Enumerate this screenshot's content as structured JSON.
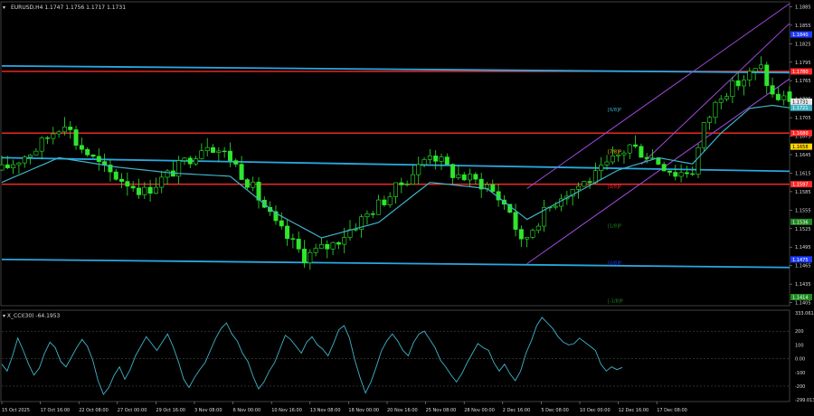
{
  "header": {
    "symbol_line": "EURUSD,H4  1.1747 1.1756 1.1717 1.1731",
    "menu_arrow": "▾"
  },
  "indicator": {
    "label": "▾ X_CCI(30) -64.1953",
    "y_ticks": [
      "333.061",
      "200",
      "100",
      "0.00",
      "-100",
      "-200",
      "-299.013"
    ]
  },
  "price_axis": {
    "ticks": [
      "1.1885",
      "1.1855",
      "1.1825",
      "1.1795",
      "1.1765",
      "1.1735",
      "1.1705",
      "1.1675",
      "1.1645",
      "1.1615",
      "1.1585",
      "1.1555",
      "1.1525",
      "1.1495",
      "1.1465",
      "1.1435",
      "1.1405"
    ],
    "current_price": "1.1731",
    "tags": [
      {
        "text": "1.1840",
        "color": "#1e3cff",
        "price": 1.184
      },
      {
        "text": "1.1780",
        "color": "#ff2a2a",
        "price": 1.178
      },
      {
        "text": "1.1721",
        "color": "#3fb3c8",
        "price": 1.1721
      },
      {
        "text": "1.1680",
        "color": "#ff2a2a",
        "price": 1.168
      },
      {
        "text": "1.1658",
        "color": "#ffd400",
        "price": 1.1658
      },
      {
        "text": "1.1597",
        "color": "#ff2a2a",
        "price": 1.1597
      },
      {
        "text": "1.1536",
        "color": "#1f8a1f",
        "price": 1.1536
      },
      {
        "text": "1.1475",
        "color": "#1e3cff",
        "price": 1.1475
      },
      {
        "text": "1.1414",
        "color": "#1f8a1f",
        "price": 1.1414
      }
    ]
  },
  "murray_labels": [
    {
      "text": "[6/8]P",
      "color": "#3fb3c8",
      "price": 1.1718
    },
    {
      "text": "[7/8]P",
      "color": "#ffd400",
      "price": 1.165
    },
    {
      "text": "[8/8]P",
      "color": "#ff2a2a",
      "price": 1.1594
    },
    {
      "text": "[1/8]P",
      "color": "#1f8a1f",
      "price": 1.153
    },
    {
      "text": "[0/8]P",
      "color": "#1e3cff",
      "price": 1.147
    },
    {
      "text": "[-1/8]P",
      "color": "#1f8a1f",
      "price": 1.1408
    }
  ],
  "time_axis": {
    "labels": [
      "15 Oct 2025",
      "17 Oct 16:00",
      "22 Oct 08:00",
      "27 Oct 00:00",
      "29 Oct 16:00",
      "3 Nov 08:00",
      "6 Nov 00:00",
      "10 Nov 16:00",
      "13 Nov 08:00",
      "18 Nov 00:00",
      "20 Nov 16:00",
      "25 Nov 08:00",
      "28 Nov 00:00",
      "2 Dec 16:00",
      "5 Dec 08:00",
      "10 Dec 00:00",
      "12 Dec 16:00",
      "17 Dec 08:00"
    ]
  },
  "chart_data": {
    "type": "candlestick",
    "symbol": "EURUSD",
    "timeframe": "H4",
    "ohlc_last": {
      "open": 1.1747,
      "high": 1.1756,
      "low": 1.1717,
      "close": 1.1731
    },
    "ylim": [
      1.14,
      1.189
    ],
    "price_path": [
      [
        0,
        1.162
      ],
      [
        6,
        1.1655
      ],
      [
        11,
        1.17
      ],
      [
        13,
        1.1665
      ],
      [
        18,
        1.162
      ],
      [
        25,
        1.1585
      ],
      [
        31,
        1.1625
      ],
      [
        36,
        1.1665
      ],
      [
        40,
        1.164
      ],
      [
        44,
        1.159
      ],
      [
        48,
        1.153
      ],
      [
        53,
        1.148
      ],
      [
        58,
        1.15
      ],
      [
        63,
        1.154
      ],
      [
        68,
        1.158
      ],
      [
        73,
        1.1625
      ],
      [
        75,
        1.165
      ],
      [
        79,
        1.1615
      ],
      [
        85,
        1.1595
      ],
      [
        89,
        1.1555
      ],
      [
        91,
        1.15
      ],
      [
        94,
        1.154
      ],
      [
        98,
        1.158
      ],
      [
        104,
        1.161
      ],
      [
        110,
        1.166
      ],
      [
        114,
        1.164
      ],
      [
        118,
        1.1615
      ],
      [
        121,
        1.162
      ],
      [
        123,
        1.169
      ],
      [
        126,
        1.1745
      ],
      [
        128,
        1.1755
      ],
      [
        131,
        1.1775
      ],
      [
        133,
        1.1785
      ],
      [
        135,
        1.174
      ],
      [
        137,
        1.1735
      ],
      [
        138,
        1.1731
      ]
    ],
    "moving_average_path": [
      [
        0,
        1.16
      ],
      [
        10,
        1.164
      ],
      [
        20,
        1.1625
      ],
      [
        30,
        1.1615
      ],
      [
        40,
        1.161
      ],
      [
        48,
        1.155
      ],
      [
        56,
        1.151
      ],
      [
        66,
        1.1535
      ],
      [
        75,
        1.16
      ],
      [
        85,
        1.159
      ],
      [
        92,
        1.154
      ],
      [
        100,
        1.158
      ],
      [
        108,
        1.162
      ],
      [
        115,
        1.164
      ],
      [
        121,
        1.163
      ],
      [
        126,
        1.168
      ],
      [
        131,
        1.172
      ],
      [
        135,
        1.1725
      ],
      [
        138,
        1.1721
      ]
    ],
    "horizontal_levels": [
      {
        "price": 1.178,
        "color": "#ff2a2a"
      },
      {
        "price": 1.168,
        "color": "#ff2a2a"
      },
      {
        "price": 1.1597,
        "color": "#ff2a2a"
      }
    ],
    "sloped_levels": [
      {
        "from": [
          0,
          1.1789
        ],
        "to": [
          138,
          1.1778
        ],
        "color": "#29a8e0"
      },
      {
        "from": [
          0,
          1.164
        ],
        "to": [
          138,
          1.1618
        ],
        "color": "#29a8e0"
      },
      {
        "from": [
          0,
          1.1475
        ],
        "to": [
          138,
          1.1462
        ],
        "color": "#29a8e0"
      }
    ],
    "channel_lines": [
      {
        "from": [
          92,
          1.159
        ],
        "to": [
          138,
          1.189
        ],
        "color": "#a24ae0"
      },
      {
        "from": [
          92,
          1.1468
        ],
        "to": [
          138,
          1.1768
        ],
        "color": "#a24ae0"
      },
      {
        "from": [
          112,
          1.1629
        ],
        "to": [
          138,
          1.1858
        ],
        "color": "#a24ae0"
      }
    ],
    "cci": {
      "name": "X_CCI(30)",
      "last": -64.1953,
      "ylim": [
        -299.013,
        333.061
      ],
      "values": [
        -40,
        -90,
        20,
        150,
        60,
        -40,
        -120,
        -70,
        40,
        120,
        80,
        -20,
        -60,
        10,
        80,
        140,
        90,
        -10,
        -160,
        -260,
        -210,
        -120,
        -60,
        -150,
        -80,
        20,
        90,
        160,
        110,
        60,
        120,
        180,
        90,
        -20,
        -150,
        -210,
        -140,
        -80,
        -30,
        60,
        150,
        220,
        260,
        180,
        130,
        40,
        -20,
        -130,
        -220,
        -170,
        -90,
        -30,
        70,
        170,
        140,
        90,
        40,
        120,
        160,
        100,
        70,
        20,
        110,
        210,
        240,
        150,
        -10,
        -140,
        -250,
        -170,
        -60,
        60,
        130,
        180,
        130,
        60,
        20,
        120,
        180,
        200,
        140,
        80,
        -10,
        -60,
        -120,
        -170,
        -110,
        -30,
        40,
        110,
        80,
        60,
        -30,
        -90,
        -40,
        -110,
        -160,
        -90,
        40,
        130,
        240,
        300,
        260,
        220,
        160,
        120,
        100,
        110,
        150,
        120,
        90,
        60,
        -40,
        -90,
        -60,
        -80,
        -64
      ]
    }
  }
}
